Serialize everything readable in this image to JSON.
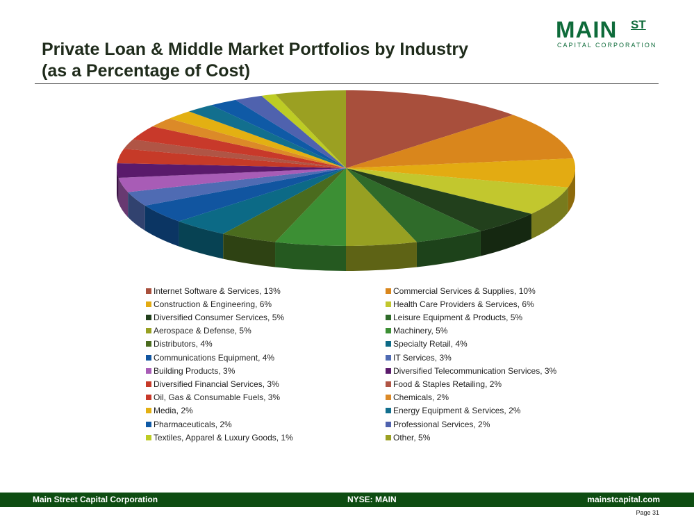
{
  "page": {
    "title_line1": "Private Loan & Middle Market Portfolios by Industry",
    "title_line2": "(as a Percentage of Cost)",
    "logo_main": "MAIN",
    "logo_st": "ST",
    "logo_sub": "CAPITAL CORPORATION",
    "footer_left": "Main Street Capital Corporation",
    "footer_center": "NYSE: MAIN",
    "footer_right": "mainstcapital.com",
    "page_number": "Page 31",
    "brand_color": "#0e6b3a",
    "footer_color": "#0e4d12"
  },
  "chart_data": {
    "type": "pie",
    "style": "3d",
    "title": "",
    "legend_position": "bottom",
    "slices": [
      {
        "label": "Internet Software & Services, 13%",
        "value": 13,
        "color": "#a84f3c"
      },
      {
        "label": "Commercial Services & Supplies, 10%",
        "value": 10,
        "color": "#d9861c"
      },
      {
        "label": "Construction & Engineering, 6%",
        "value": 6,
        "color": "#e3ab12"
      },
      {
        "label": "Health Care Providers & Services, 6%",
        "value": 6,
        "color": "#c2c72e"
      },
      {
        "label": "Diversified Consumer Services, 5%",
        "value": 5,
        "color": "#22401c"
      },
      {
        "label": "Leisure Equipment & Products, 5%",
        "value": 5,
        "color": "#2f6b2a"
      },
      {
        "label": "Aerospace & Defense, 5%",
        "value": 5,
        "color": "#97a022"
      },
      {
        "label": "Machinery, 5%",
        "value": 5,
        "color": "#3c8f34"
      },
      {
        "label": "Distributors, 4%",
        "value": 4,
        "color": "#4a6b1e"
      },
      {
        "label": "Specialty Retail, 4%",
        "value": 4,
        "color": "#0c6a86"
      },
      {
        "label": "Communications Equipment, 4%",
        "value": 4,
        "color": "#1155a0"
      },
      {
        "label": "IT Services, 3%",
        "value": 3,
        "color": "#4f6bb3"
      },
      {
        "label": "Building Products, 3%",
        "value": 3,
        "color": "#a85cb6"
      },
      {
        "label": "Diversified Telecommunication Services, 3%",
        "value": 3,
        "color": "#5a1a6b"
      },
      {
        "label": "Diversified Financial Services, 3%",
        "value": 3,
        "color": "#c63a28"
      },
      {
        "label": "Food & Staples Retailing, 2%",
        "value": 2,
        "color": "#b05545"
      },
      {
        "label": "Oil, Gas & Consumable Fuels, 3%",
        "value": 3,
        "color": "#c8392a"
      },
      {
        "label": "Chemicals, 2%",
        "value": 2,
        "color": "#dc8a28"
      },
      {
        "label": "Media, 2%",
        "value": 2,
        "color": "#e3b012"
      },
      {
        "label": "Energy Equipment & Services, 2%",
        "value": 2,
        "color": "#126f8e"
      },
      {
        "label": "Pharmaceuticals, 2%",
        "value": 2,
        "color": "#0f5aa6"
      },
      {
        "label": "Professional Services, 2%",
        "value": 2,
        "color": "#4f62ae"
      },
      {
        "label": "Textiles, Apparel & Luxury Goods, 1%",
        "value": 1,
        "color": "#bdcc24"
      },
      {
        "label": "Other, 5%",
        "value": 5,
        "color": "#9ba022"
      }
    ]
  }
}
